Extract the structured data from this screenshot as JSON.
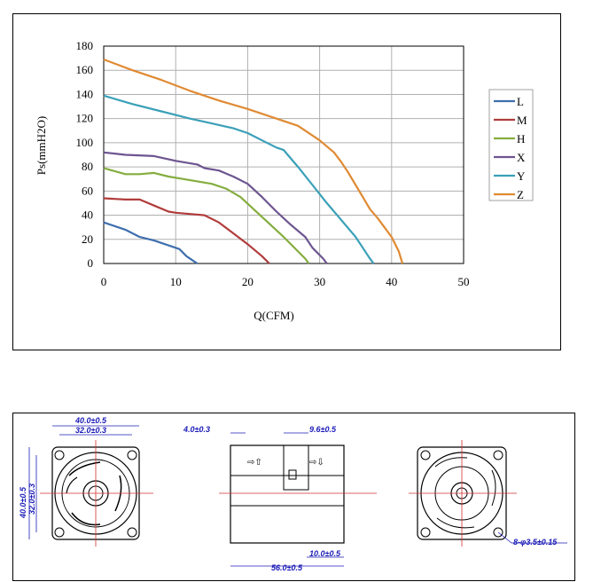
{
  "chart_data": {
    "type": "line",
    "xlabel": "Q(CFM)",
    "ylabel": "Ps(mmH2O)",
    "xlim": [
      0,
      50
    ],
    "ylim": [
      0,
      180
    ],
    "x_ticks": [
      "0",
      "10",
      "20",
      "30",
      "40",
      "50"
    ],
    "y_ticks": [
      "0",
      "20",
      "40",
      "60",
      "80",
      "100",
      "120",
      "140",
      "160",
      "180"
    ],
    "grid": true,
    "legend_position": "right",
    "series": [
      {
        "name": "L",
        "color": "#3f6fae",
        "points": [
          [
            0,
            34
          ],
          [
            3,
            28
          ],
          [
            5,
            22
          ],
          [
            7,
            19
          ],
          [
            9,
            15
          ],
          [
            10.5,
            12
          ],
          [
            11.5,
            6
          ],
          [
            12.5,
            2
          ],
          [
            13,
            0
          ]
        ]
      },
      {
        "name": "M",
        "color": "#b13c3c",
        "points": [
          [
            0,
            54
          ],
          [
            3,
            53
          ],
          [
            5,
            53
          ],
          [
            7,
            48
          ],
          [
            9,
            43
          ],
          [
            10,
            42
          ],
          [
            12,
            41
          ],
          [
            14,
            40
          ],
          [
            16,
            34
          ],
          [
            18,
            25
          ],
          [
            20,
            16
          ],
          [
            22,
            6
          ],
          [
            23,
            0
          ]
        ]
      },
      {
        "name": "H",
        "color": "#84ad3f",
        "points": [
          [
            0,
            79
          ],
          [
            3,
            74
          ],
          [
            5,
            74
          ],
          [
            7,
            75
          ],
          [
            9,
            72
          ],
          [
            11,
            70
          ],
          [
            13,
            68
          ],
          [
            15,
            66
          ],
          [
            17,
            62
          ],
          [
            19,
            55
          ],
          [
            21,
            44
          ],
          [
            23,
            33
          ],
          [
            25,
            22
          ],
          [
            27,
            10
          ],
          [
            28,
            4
          ],
          [
            28.5,
            0
          ]
        ]
      },
      {
        "name": "X",
        "color": "#6d5590",
        "points": [
          [
            0,
            92
          ],
          [
            3,
            90
          ],
          [
            7,
            89
          ],
          [
            10,
            85
          ],
          [
            13,
            82
          ],
          [
            14,
            79
          ],
          [
            16,
            77
          ],
          [
            18,
            72
          ],
          [
            20,
            66
          ],
          [
            22,
            55
          ],
          [
            24,
            43
          ],
          [
            26,
            32
          ],
          [
            28,
            22
          ],
          [
            29,
            13
          ],
          [
            30.5,
            4
          ],
          [
            31,
            0
          ]
        ]
      },
      {
        "name": "Y",
        "color": "#3aa0b8",
        "points": [
          [
            0,
            139
          ],
          [
            4,
            132
          ],
          [
            8,
            126
          ],
          [
            12,
            120
          ],
          [
            15,
            116
          ],
          [
            18,
            112
          ],
          [
            20,
            108
          ],
          [
            22,
            102
          ],
          [
            24,
            96
          ],
          [
            25,
            94
          ],
          [
            27,
            80
          ],
          [
            29,
            65
          ],
          [
            31,
            50
          ],
          [
            33,
            36
          ],
          [
            35,
            22
          ],
          [
            36,
            13
          ],
          [
            37,
            4
          ],
          [
            37.5,
            0
          ]
        ]
      },
      {
        "name": "Z",
        "color": "#e08a33",
        "points": [
          [
            0,
            169
          ],
          [
            4,
            160
          ],
          [
            8,
            152
          ],
          [
            12,
            143
          ],
          [
            16,
            135
          ],
          [
            20,
            128
          ],
          [
            24,
            120
          ],
          [
            27,
            114
          ],
          [
            28,
            110
          ],
          [
            30,
            102
          ],
          [
            32,
            92
          ],
          [
            33,
            84
          ],
          [
            34,
            75
          ],
          [
            35,
            65
          ],
          [
            36,
            55
          ],
          [
            37,
            45
          ],
          [
            38,
            38
          ],
          [
            39,
            30
          ],
          [
            40,
            22
          ],
          [
            41,
            10
          ],
          [
            41.5,
            0
          ]
        ]
      }
    ]
  },
  "drawing": {
    "front_width_outer": "40.0±0.5",
    "front_width_inner": "32.0±0.3",
    "front_height_outer": "40.0±0.5",
    "front_height_inner": "32.0±0.3",
    "side_flange": "4.0±0.3",
    "side_gap": "9.6±0.5",
    "side_length": "56.0±0.5",
    "side_bottom": "10.0±0.5",
    "back_holes": "8-φ3.5±0.15"
  }
}
